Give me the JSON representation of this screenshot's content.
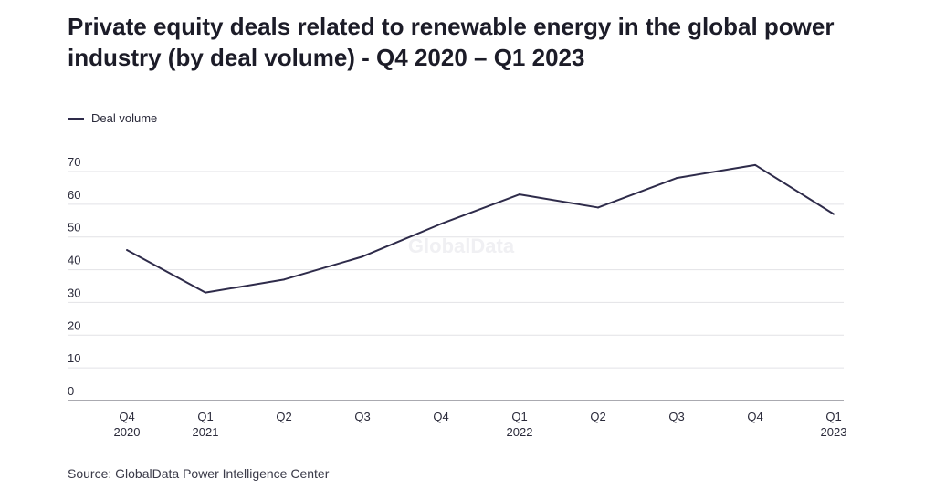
{
  "chart_data": {
    "type": "line",
    "title": "Private equity deals related to renewable energy in the global power industry (by deal volume) - Q4 2020 – Q1 2023",
    "categories": [
      [
        "Q4",
        "2020"
      ],
      [
        "Q1",
        "2021"
      ],
      [
        "Q2",
        ""
      ],
      [
        "Q3",
        ""
      ],
      [
        "Q4",
        ""
      ],
      [
        "Q1",
        "2022"
      ],
      [
        "Q2",
        ""
      ],
      [
        "Q3",
        ""
      ],
      [
        "Q4",
        ""
      ],
      [
        "Q1",
        "2023"
      ]
    ],
    "series": [
      {
        "name": "Deal volume",
        "color": "#2e2b4a",
        "values": [
          46,
          33,
          37,
          44,
          54,
          63,
          59,
          68,
          72,
          57
        ]
      }
    ],
    "yticks": [
      0,
      10,
      20,
      30,
      40,
      50,
      60,
      70
    ],
    "ylim": [
      0,
      70
    ],
    "grid": true,
    "legend": "top-left",
    "watermark": "GlobalData",
    "source": "Source: GlobalData Power Intelligence Center"
  }
}
